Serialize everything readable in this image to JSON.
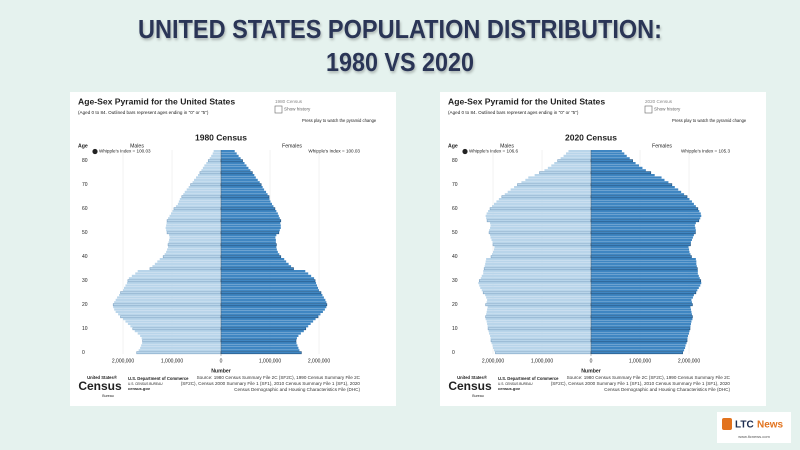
{
  "header": {
    "title_line1": "UNITED STATES POPULATION DISTRIBUTION:",
    "title_line2": "1980 VS 2020"
  },
  "logo": {
    "name_left": "LTC",
    "name_right": "News",
    "url": "www.ltcnews.com"
  },
  "chart_data": [
    {
      "type": "pyramid",
      "title": "Age-Sex Pyramid for the United States",
      "subtitle": "(Aged 0 to 84. Outlined bars represent ages ending in \"0\" or \"5\")",
      "year_label": "1980 Census",
      "checkbox_label": "Show history",
      "play_note": "Press play to watch the pyramid change",
      "heading": "1980 Census",
      "y_label": "Age",
      "x_label": "Number",
      "whipple_left": "Whipple's Index = 100.03",
      "whipple_right": "Whipple's Index = 100.03",
      "census_logo": {
        "top": "United States®",
        "main": "Census",
        "bottom": "Bureau"
      },
      "agency": "U.S. Department of Commerce",
      "agency_sub": "U.S. CENSUS BUREAU",
      "agency_url": "census.gov",
      "source": "Source: 1980 Census Summary File 2C (SF2C), 1990 Census Summary File 2C (SF2C), Census 2000 Summary File 1 (SF1), 2010 Census Summary File 1 (SF1), 2020 Census Demographic and Housing Characteristics File (DHC)",
      "ylim": [
        0,
        85
      ],
      "yticks": [
        0,
        10,
        20,
        30,
        40,
        50,
        60,
        70,
        80
      ],
      "xlim": [
        -2500000,
        2500000
      ],
      "xticks": [
        {
          "value": -2000000,
          "label": "2,000,000"
        },
        {
          "value": -1000000,
          "label": "1,000,000"
        },
        0,
        {
          "value": 1000000,
          "label": "1,000,000"
        },
        {
          "value": 2000000,
          "label": "2,000,000"
        }
      ],
      "grid": true,
      "series": [
        {
          "name": "Males",
          "color": "#b9d5ea",
          "values": [
            1720000,
            1680000,
            1650000,
            1630000,
            1610000,
            1600000,
            1620000,
            1650000,
            1700000,
            1760000,
            1800000,
            1850000,
            1900000,
            1950000,
            2000000,
            2050000,
            2100000,
            2150000,
            2180000,
            2200000,
            2200000,
            2180000,
            2150000,
            2120000,
            2080000,
            2050000,
            2000000,
            1980000,
            1950000,
            1920000,
            1900000,
            1880000,
            1820000,
            1750000,
            1700000,
            1450000,
            1400000,
            1350000,
            1300000,
            1250000,
            1180000,
            1150000,
            1120000,
            1100000,
            1080000,
            1080000,
            1070000,
            1060000,
            1050000,
            1060000,
            1100000,
            1120000,
            1130000,
            1120000,
            1110000,
            1100000,
            1080000,
            1050000,
            1020000,
            990000,
            960000,
            920000,
            880000,
            860000,
            840000,
            800000,
            770000,
            740000,
            700000,
            660000,
            620000,
            580000,
            550000,
            510000,
            470000,
            430000,
            400000,
            370000,
            340000,
            300000,
            260000,
            230000,
            200000,
            170000,
            150000
          ]
        },
        {
          "name": "Females",
          "color": "#3f86c2",
          "values": [
            1640000,
            1600000,
            1580000,
            1560000,
            1540000,
            1530000,
            1550000,
            1580000,
            1630000,
            1690000,
            1730000,
            1780000,
            1830000,
            1880000,
            1930000,
            1980000,
            2030000,
            2080000,
            2120000,
            2150000,
            2160000,
            2150000,
            2130000,
            2100000,
            2070000,
            2040000,
            2000000,
            1980000,
            1960000,
            1940000,
            1920000,
            1900000,
            1840000,
            1780000,
            1720000,
            1480000,
            1430000,
            1380000,
            1330000,
            1290000,
            1220000,
            1190000,
            1160000,
            1140000,
            1130000,
            1130000,
            1120000,
            1120000,
            1110000,
            1130000,
            1180000,
            1200000,
            1220000,
            1220000,
            1210000,
            1220000,
            1200000,
            1180000,
            1160000,
            1130000,
            1100000,
            1070000,
            1040000,
            1010000,
            990000,
            980000,
            950000,
            920000,
            880000,
            850000,
            820000,
            790000,
            750000,
            710000,
            680000,
            640000,
            600000,
            560000,
            520000,
            480000,
            440000,
            400000,
            360000,
            320000,
            280000
          ]
        }
      ]
    },
    {
      "type": "pyramid",
      "title": "Age-Sex Pyramid for the United States",
      "subtitle": "(Aged 0 to 84. Outlined bars represent ages ending in \"0\" or \"5\")",
      "year_label": "2020 Census",
      "checkbox_label": "Show history",
      "play_note": "Press play to watch the pyramid change",
      "heading": "2020 Census",
      "y_label": "Age",
      "x_label": "Number",
      "whipple_left": "Whipple's Index = 106.6",
      "whipple_right": "Whipple's Index = 105.3",
      "census_logo": {
        "top": "United States®",
        "main": "Census",
        "bottom": "Bureau"
      },
      "agency": "U.S. Department of Commerce",
      "agency_sub": "U.S. CENSUS BUREAU",
      "agency_url": "census.gov",
      "source": "Source: 1980 Census Summary File 2C (SF2C), 1990 Census Summary File 2C (SF2C), Census 2000 Summary File 1 (SF1), 2010 Census Summary File 1 (SF1), 2020 Census Demographic and Housing Characteristics File (DHC)",
      "ylim": [
        0,
        85
      ],
      "yticks": [
        0,
        10,
        20,
        30,
        40,
        50,
        60,
        70,
        80
      ],
      "xlim": [
        -2500000,
        2500000
      ],
      "xticks": [
        {
          "value": -2000000,
          "label": "2,000,000"
        },
        {
          "value": -1000000,
          "label": "1,000,000"
        },
        0,
        {
          "value": 1000000,
          "label": "1,000,000"
        },
        {
          "value": 2000000,
          "label": "2,000,000"
        }
      ],
      "grid": true,
      "series": [
        {
          "name": "Males",
          "color": "#b9d5ea",
          "values": [
            1950000,
            1980000,
            2000000,
            2010000,
            2030000,
            2040000,
            2050000,
            2060000,
            2080000,
            2090000,
            2100000,
            2110000,
            2120000,
            2130000,
            2150000,
            2150000,
            2140000,
            2130000,
            2120000,
            2110000,
            2150000,
            2130000,
            2120000,
            2140000,
            2160000,
            2200000,
            2230000,
            2260000,
            2280000,
            2300000,
            2280000,
            2250000,
            2230000,
            2200000,
            2200000,
            2180000,
            2170000,
            2160000,
            2150000,
            2140000,
            2040000,
            2020000,
            2000000,
            1980000,
            1970000,
            2000000,
            2010000,
            2030000,
            2050000,
            2060000,
            2080000,
            2080000,
            2060000,
            2050000,
            2060000,
            2120000,
            2140000,
            2150000,
            2130000,
            2100000,
            2060000,
            2020000,
            1980000,
            1930000,
            1880000,
            1820000,
            1760000,
            1700000,
            1640000,
            1570000,
            1500000,
            1420000,
            1340000,
            1280000,
            1150000,
            1050000,
            950000,
            880000,
            810000,
            750000,
            680000,
            620000,
            560000,
            510000,
            460000
          ]
        },
        {
          "name": "Females",
          "color": "#3f86c2",
          "values": [
            1870000,
            1900000,
            1920000,
            1930000,
            1950000,
            1960000,
            1970000,
            1980000,
            2000000,
            2010000,
            2020000,
            2030000,
            2040000,
            2050000,
            2070000,
            2070000,
            2060000,
            2050000,
            2040000,
            2030000,
            2070000,
            2060000,
            2050000,
            2080000,
            2100000,
            2140000,
            2170000,
            2200000,
            2230000,
            2250000,
            2240000,
            2220000,
            2200000,
            2180000,
            2180000,
            2170000,
            2160000,
            2150000,
            2150000,
            2140000,
            2050000,
            2030000,
            2010000,
            2000000,
            1990000,
            2030000,
            2040000,
            2060000,
            2080000,
            2100000,
            2130000,
            2140000,
            2130000,
            2120000,
            2140000,
            2200000,
            2230000,
            2250000,
            2240000,
            2210000,
            2180000,
            2140000,
            2100000,
            2060000,
            2010000,
            1960000,
            1900000,
            1840000,
            1780000,
            1710000,
            1650000,
            1580000,
            1500000,
            1440000,
            1300000,
            1220000,
            1120000,
            1050000,
            980000,
            910000,
            850000,
            790000,
            730000,
            680000,
            630000
          ]
        }
      ]
    }
  ]
}
